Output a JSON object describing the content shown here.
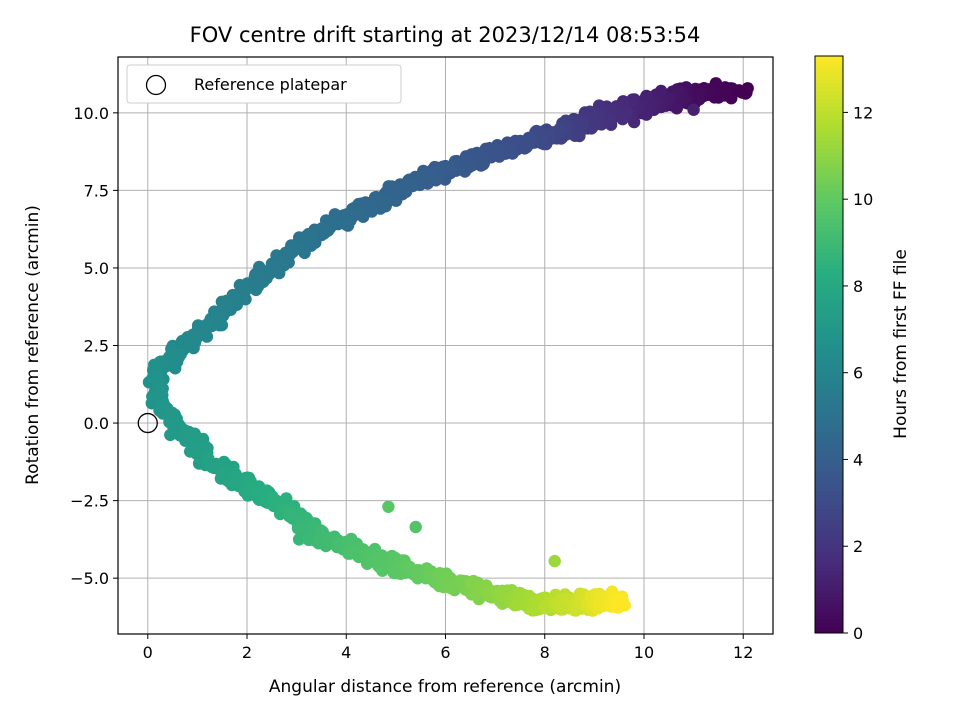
{
  "chart_data": {
    "type": "scatter",
    "title": "FOV centre drift starting at 2023/12/14 08:53:54",
    "xlabel": "Angular distance from reference (arcmin)",
    "ylabel": "Rotation from reference (arcmin)",
    "xlim": [
      -0.6,
      12.6
    ],
    "ylim": [
      -6.8,
      11.8
    ],
    "x_ticks": [
      0,
      2,
      4,
      6,
      8,
      10,
      12
    ],
    "x_tick_labels": [
      "0",
      "2",
      "4",
      "6",
      "8",
      "10",
      "12"
    ],
    "y_ticks": [
      -5.0,
      -2.5,
      0.0,
      2.5,
      5.0,
      7.5,
      10.0
    ],
    "y_tick_labels": [
      "−5.0",
      "−2.5",
      "0.0",
      "2.5",
      "5.0",
      "7.5",
      "10.0"
    ],
    "grid": true,
    "legend": {
      "placement": "top-left",
      "entries": [
        "Reference platepar"
      ]
    },
    "reference_point": {
      "x": 0,
      "y": 0,
      "marker": "open-circle"
    },
    "colorbar": {
      "label": "Hours from first FF file",
      "range": [
        0,
        13.3
      ],
      "ticks": [
        0,
        2,
        4,
        6,
        8,
        10,
        12
      ],
      "tick_labels": [
        "0",
        "2",
        "4",
        "6",
        "8",
        "10",
        "12"
      ],
      "colormap": "viridis"
    },
    "trend_samples": [
      {
        "hours": 0.0,
        "x": 12.0,
        "y": 10.7
      },
      {
        "hours": 0.3,
        "x": 11.0,
        "y": 10.6
      },
      {
        "hours": 1.0,
        "x": 10.3,
        "y": 10.4
      },
      {
        "hours": 2.0,
        "x": 9.0,
        "y": 9.8
      },
      {
        "hours": 3.0,
        "x": 7.8,
        "y": 9.1
      },
      {
        "hours": 4.0,
        "x": 5.5,
        "y": 7.9
      },
      {
        "hours": 5.0,
        "x": 3.3,
        "y": 6.0
      },
      {
        "hours": 5.7,
        "x": 1.8,
        "y": 4.0
      },
      {
        "hours": 6.3,
        "x": 0.6,
        "y": 2.3
      },
      {
        "hours": 6.6,
        "x": 0.1,
        "y": 1.6
      },
      {
        "hours": 7.0,
        "x": 0.4,
        "y": 0.2
      },
      {
        "hours": 7.6,
        "x": 1.5,
        "y": -1.5
      },
      {
        "hours": 8.3,
        "x": 2.5,
        "y": -2.5
      },
      {
        "hours": 9.0,
        "x": 3.5,
        "y": -3.7
      },
      {
        "hours": 9.8,
        "x": 5.0,
        "y": -4.6
      },
      {
        "hours": 10.6,
        "x": 6.5,
        "y": -5.3
      },
      {
        "hours": 11.5,
        "x": 7.8,
        "y": -5.8
      },
      {
        "hours": 12.4,
        "x": 8.8,
        "y": -5.8
      },
      {
        "hours": 13.3,
        "x": 9.5,
        "y": -5.7
      }
    ],
    "outlier_points": [
      {
        "hours": 9.8,
        "x": 4.85,
        "y": -2.7
      },
      {
        "hours": 9.6,
        "x": 5.4,
        "y": -3.35
      },
      {
        "hours": 11.3,
        "x": 8.2,
        "y": -4.45
      },
      {
        "hours": 1.2,
        "x": 11.0,
        "y": 10.1
      },
      {
        "hours": 1.5,
        "x": 9.8,
        "y": 9.7
      },
      {
        "hours": 8.8,
        "x": 3.05,
        "y": -3.75
      }
    ],
    "points_per_unit_hour": 110
  }
}
